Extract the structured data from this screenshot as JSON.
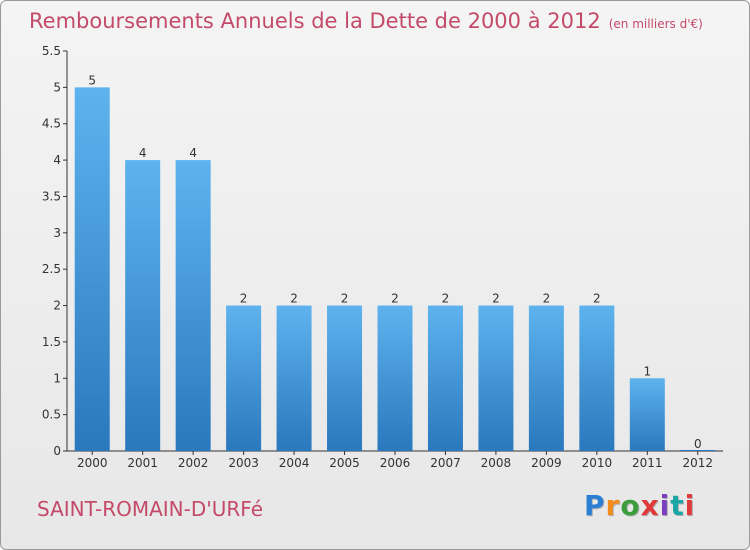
{
  "title": "Remboursements Annuels de la Dette de 2000 à 2012",
  "unit_label": "(en milliers d'€)",
  "commune": "SAINT-ROMAIN-D'URFé",
  "logo_text": "Proxiti",
  "colors": {
    "title": "#c44a6a",
    "bar_top": "#5eb3ee",
    "bar_bottom": "#2a78bd",
    "axis": "#333333",
    "logo": [
      "#2a7fd4",
      "#f28c1c",
      "#3b9d3b",
      "#e03a3a",
      "#7a3fbf",
      "#1aa6a6",
      "#e03a3a"
    ]
  },
  "chart_data": {
    "type": "bar",
    "categories": [
      "2000",
      "2001",
      "2002",
      "2003",
      "2004",
      "2005",
      "2006",
      "2007",
      "2008",
      "2009",
      "2010",
      "2011",
      "2012"
    ],
    "values": [
      5,
      4,
      4,
      2,
      2,
      2,
      2,
      2,
      2,
      2,
      2,
      1,
      0
    ],
    "data_labels": [
      "5",
      "4",
      "4",
      "2",
      "2",
      "2",
      "2",
      "2",
      "2",
      "2",
      "2",
      "1",
      "0"
    ],
    "ylim": [
      0,
      5.5
    ],
    "yticks": [
      0,
      0.5,
      1,
      1.5,
      2,
      2.5,
      3,
      3.5,
      4,
      4.5,
      5,
      5.5
    ],
    "ytick_labels": [
      "0",
      "0.5",
      "1",
      "1.5",
      "2",
      "2.5",
      "3",
      "3.5",
      "4",
      "4.5",
      "5",
      "5.5"
    ],
    "grid": false,
    "legend": "none"
  }
}
